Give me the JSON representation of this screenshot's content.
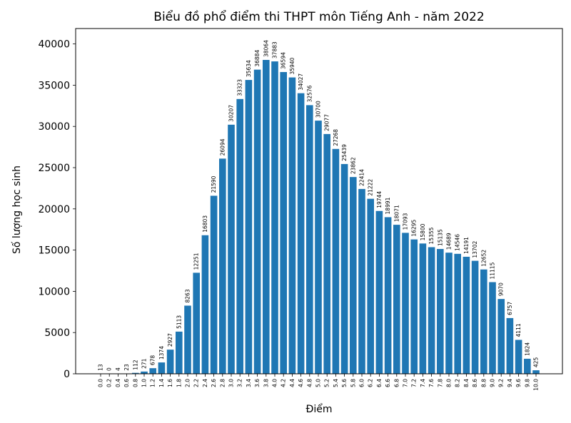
{
  "chart_data": {
    "type": "bar",
    "title": "Biểu đồ phổ điểm thi THPT môn Tiếng Anh - năm 2022",
    "x_label": "Điểm",
    "y_label": "Số lượng học sinh",
    "categories": [
      "0.0",
      "0.2",
      "0.4",
      "0.6",
      "0.8",
      "1.0",
      "1.2",
      "1.4",
      "1.6",
      "1.8",
      "2.0",
      "2.2",
      "2.4",
      "2.6",
      "2.8",
      "3.0",
      "3.2",
      "3.4",
      "3.6",
      "3.8",
      "4.0",
      "4.2",
      "4.4",
      "4.6",
      "4.8",
      "5.0",
      "5.2",
      "5.4",
      "5.6",
      "5.8",
      "6.0",
      "6.2",
      "6.4",
      "6.6",
      "6.8",
      "7.0",
      "7.2",
      "7.4",
      "7.6",
      "7.8",
      "8.0",
      "8.2",
      "8.4",
      "8.6",
      "8.8",
      "9.0",
      "9.2",
      "9.4",
      "9.6",
      "9.8",
      "10.0"
    ],
    "values": [
      13,
      0,
      4,
      23,
      112,
      271,
      678,
      1374,
      2927,
      5113,
      8263,
      12251,
      16803,
      21590,
      26094,
      30207,
      33323,
      35634,
      36884,
      38064,
      37883,
      36594,
      35940,
      34027,
      32576,
      30700,
      29077,
      27268,
      25439,
      23862,
      22414,
      21222,
      19744,
      18991,
      18071,
      17093,
      16295,
      15800,
      15355,
      15135,
      14689,
      14546,
      14191,
      13702,
      12652,
      11115,
      9070,
      6757,
      4111,
      1824,
      425
    ],
    "color": "#1f77b4",
    "ylim": [
      0,
      41870
    ],
    "yticks": [
      0,
      5000,
      10000,
      15000,
      20000,
      25000,
      30000,
      35000,
      40000
    ]
  }
}
